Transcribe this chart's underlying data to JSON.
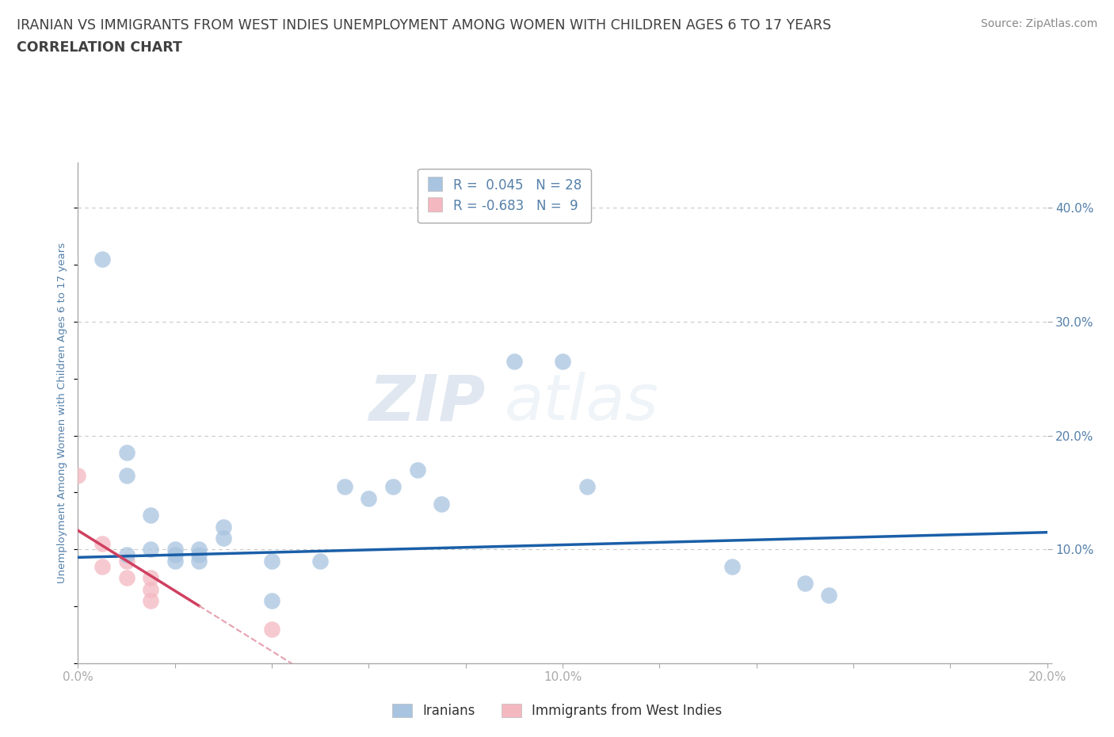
{
  "title_line1": "IRANIAN VS IMMIGRANTS FROM WEST INDIES UNEMPLOYMENT AMONG WOMEN WITH CHILDREN AGES 6 TO 17 YEARS",
  "title_line2": "CORRELATION CHART",
  "source_text": "Source: ZipAtlas.com",
  "ylabel": "Unemployment Among Women with Children Ages 6 to 17 years",
  "watermark_zip": "ZIP",
  "watermark_atlas": "atlas",
  "xlim": [
    0.0,
    0.2
  ],
  "ylim": [
    0.0,
    0.44
  ],
  "ytick_labels": [
    "",
    "10.0%",
    "20.0%",
    "30.0%",
    "40.0%"
  ],
  "ytick_vals": [
    0.0,
    0.1,
    0.2,
    0.3,
    0.4
  ],
  "xtick_labels": [
    "0.0%",
    "",
    "",
    "",
    "",
    "10.0%",
    "",
    "",
    "",
    "",
    "20.0%"
  ],
  "xtick_vals": [
    0.0,
    0.02,
    0.04,
    0.06,
    0.08,
    0.1,
    0.12,
    0.14,
    0.16,
    0.18,
    0.2
  ],
  "blue_R": 0.045,
  "blue_N": 28,
  "pink_R": -0.683,
  "pink_N": 9,
  "iranians_x": [
    0.005,
    0.01,
    0.01,
    0.01,
    0.015,
    0.015,
    0.02,
    0.02,
    0.02,
    0.025,
    0.025,
    0.025,
    0.03,
    0.03,
    0.04,
    0.04,
    0.05,
    0.055,
    0.06,
    0.065,
    0.07,
    0.075,
    0.09,
    0.1,
    0.105,
    0.135,
    0.15,
    0.155
  ],
  "iranians_y": [
    0.355,
    0.185,
    0.165,
    0.095,
    0.13,
    0.1,
    0.1,
    0.095,
    0.09,
    0.1,
    0.095,
    0.09,
    0.12,
    0.11,
    0.09,
    0.055,
    0.09,
    0.155,
    0.145,
    0.155,
    0.17,
    0.14,
    0.265,
    0.265,
    0.155,
    0.085,
    0.07,
    0.06
  ],
  "westindies_x": [
    0.0,
    0.005,
    0.005,
    0.01,
    0.01,
    0.015,
    0.015,
    0.015,
    0.04
  ],
  "westindies_y": [
    0.165,
    0.105,
    0.085,
    0.09,
    0.075,
    0.075,
    0.065,
    0.055,
    0.03
  ],
  "blue_color": "#a8c4e0",
  "pink_color": "#f4b8c1",
  "blue_line_color": "#1a5fa8",
  "pink_line_color": "#d04060",
  "pink_dash_color": "#e8a0b0",
  "background_color": "#ffffff",
  "grid_color": "#c8c8c8",
  "title_color": "#404040",
  "axis_label_color": "#5580aa",
  "tick_color": "#5580aa",
  "source_color": "#888888"
}
